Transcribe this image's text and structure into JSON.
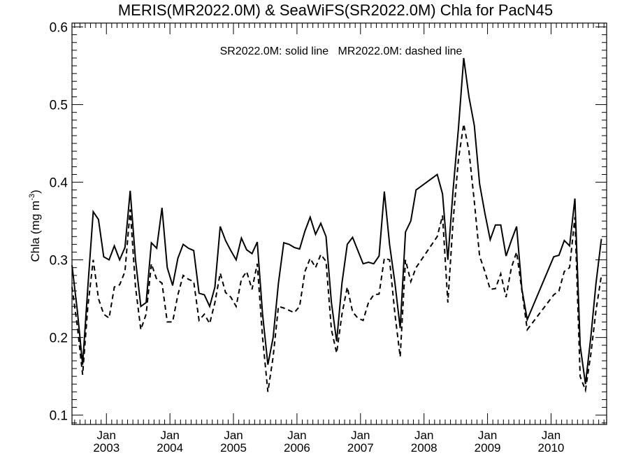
{
  "chart_data": {
    "type": "line",
    "title": "MERIS(MR2022.0M) & SeaWiFS(SR2022.0M)  Chla for PacN45",
    "annotation": "SR2022.0M: solid line   MR2022.0M: dashed line",
    "ylabel": "Chla (mg m",
    "ylabel_superscript": "-3",
    "ylabel_suffix": ")",
    "ylim": [
      0.088,
      0.605
    ],
    "xlim": [
      2002.458,
      2010.875
    ],
    "grid": false,
    "y_ticks": [
      {
        "value": 0.1,
        "label": "0.1"
      },
      {
        "value": 0.2,
        "label": "0.2"
      },
      {
        "value": 0.3,
        "label": "0.3"
      },
      {
        "value": 0.4,
        "label": "0.4"
      },
      {
        "value": 0.5,
        "label": "0.5"
      },
      {
        "value": 0.6,
        "label": "0.6"
      }
    ],
    "x_ticks": [
      {
        "value": 2003.0,
        "month": "Jan",
        "year": "2003"
      },
      {
        "value": 2004.0,
        "month": "Jan",
        "year": "2004"
      },
      {
        "value": 2005.0,
        "month": "Jan",
        "year": "2005"
      },
      {
        "value": 2006.0,
        "month": "Jan",
        "year": "2006"
      },
      {
        "value": 2007.0,
        "month": "Jan",
        "year": "2007"
      },
      {
        "value": 2008.0,
        "month": "Jan",
        "year": "2008"
      },
      {
        "value": 2009.0,
        "month": "Jan",
        "year": "2009"
      },
      {
        "value": 2010.0,
        "month": "Jan",
        "year": "2010"
      }
    ],
    "series": [
      {
        "name": "SR2022.0M",
        "style": "solid",
        "color": "#000000",
        "x": [
          2002.458,
          2002.542,
          2002.625,
          2002.708,
          2002.792,
          2002.875,
          2002.958,
          2003.042,
          2003.125,
          2003.208,
          2003.292,
          2003.375,
          2003.458,
          2003.542,
          2003.625,
          2003.708,
          2003.792,
          2003.875,
          2003.958,
          2004.042,
          2004.125,
          2004.208,
          2004.292,
          2004.375,
          2004.458,
          2004.542,
          2004.625,
          2004.708,
          2004.792,
          2004.875,
          2004.958,
          2005.042,
          2005.125,
          2005.208,
          2005.292,
          2005.375,
          2005.458,
          2005.542,
          2005.625,
          2005.708,
          2005.792,
          2005.875,
          2005.958,
          2006.042,
          2006.125,
          2006.208,
          2006.292,
          2006.375,
          2006.458,
          2006.542,
          2006.625,
          2006.708,
          2006.792,
          2006.875,
          2006.958,
          2007.042,
          2007.125,
          2007.208,
          2007.292,
          2007.375,
          2007.458,
          2007.542,
          2007.625,
          2007.708,
          2007.792,
          2007.875,
          2008.208,
          2008.292,
          2008.375,
          2008.458,
          2008.542,
          2008.625,
          2008.708,
          2008.792,
          2008.875,
          2008.958,
          2009.042,
          2009.125,
          2009.208,
          2009.292,
          2009.375,
          2009.458,
          2009.542,
          2009.625,
          2010.042,
          2010.125,
          2010.208,
          2010.292,
          2010.375,
          2010.458,
          2010.542,
          2010.625,
          2010.708,
          2010.792
        ],
        "values": [
          0.293,
          0.235,
          0.165,
          0.265,
          0.362,
          0.352,
          0.304,
          0.3,
          0.318,
          0.3,
          0.316,
          0.389,
          0.3,
          0.24,
          0.245,
          0.322,
          0.315,
          0.367,
          0.29,
          0.267,
          0.302,
          0.32,
          0.315,
          0.312,
          0.257,
          0.255,
          0.24,
          0.265,
          0.343,
          0.325,
          0.312,
          0.3,
          0.328,
          0.313,
          0.308,
          0.323,
          0.23,
          0.165,
          0.2,
          0.27,
          0.322,
          0.32,
          0.316,
          0.314,
          0.337,
          0.355,
          0.333,
          0.347,
          0.33,
          0.245,
          0.195,
          0.27,
          0.32,
          0.329,
          0.312,
          0.295,
          0.297,
          0.295,
          0.305,
          0.388,
          0.32,
          0.27,
          0.212,
          0.336,
          0.35,
          0.39,
          0.41,
          0.385,
          0.3,
          0.39,
          0.47,
          0.56,
          0.51,
          0.473,
          0.398,
          0.36,
          0.326,
          0.345,
          0.345,
          0.305,
          0.325,
          0.343,
          0.262,
          0.223,
          0.304,
          0.306,
          0.325,
          0.318,
          0.379,
          0.19,
          0.14,
          0.2,
          0.27,
          0.327
        ]
      },
      {
        "name": "MR2022.0M",
        "style": "dashed",
        "color": "#000000",
        "x": [
          2002.458,
          2002.542,
          2002.625,
          2002.708,
          2002.792,
          2002.875,
          2002.958,
          2003.042,
          2003.125,
          2003.208,
          2003.292,
          2003.375,
          2003.458,
          2003.542,
          2003.625,
          2003.708,
          2003.792,
          2003.875,
          2003.958,
          2004.042,
          2004.125,
          2004.208,
          2004.292,
          2004.375,
          2004.458,
          2004.542,
          2004.625,
          2004.708,
          2004.792,
          2004.875,
          2004.958,
          2005.042,
          2005.125,
          2005.208,
          2005.292,
          2005.375,
          2005.458,
          2005.542,
          2005.625,
          2005.708,
          2005.792,
          2005.875,
          2005.958,
          2006.042,
          2006.125,
          2006.208,
          2006.292,
          2006.375,
          2006.458,
          2006.542,
          2006.625,
          2006.708,
          2006.792,
          2006.875,
          2006.958,
          2007.042,
          2007.125,
          2007.208,
          2007.292,
          2007.375,
          2007.458,
          2007.542,
          2007.625,
          2007.708,
          2007.792,
          2007.875,
          2008.208,
          2008.292,
          2008.375,
          2008.458,
          2008.542,
          2008.625,
          2008.708,
          2008.792,
          2008.875,
          2008.958,
          2009.042,
          2009.125,
          2009.208,
          2009.292,
          2009.375,
          2009.458,
          2009.542,
          2009.625,
          2010.042,
          2010.125,
          2010.208,
          2010.292,
          2010.375,
          2010.458,
          2010.542,
          2010.625,
          2010.708,
          2010.792
        ],
        "values": [
          0.265,
          0.215,
          0.152,
          0.24,
          0.3,
          0.25,
          0.23,
          0.225,
          0.265,
          0.268,
          0.285,
          0.365,
          0.265,
          0.21,
          0.23,
          0.295,
          0.275,
          0.27,
          0.22,
          0.22,
          0.255,
          0.28,
          0.275,
          0.272,
          0.222,
          0.23,
          0.218,
          0.245,
          0.283,
          0.258,
          0.252,
          0.24,
          0.275,
          0.285,
          0.262,
          0.295,
          0.2,
          0.13,
          0.175,
          0.24,
          0.238,
          0.235,
          0.232,
          0.24,
          0.285,
          0.302,
          0.29,
          0.307,
          0.298,
          0.21,
          0.18,
          0.23,
          0.265,
          0.233,
          0.225,
          0.222,
          0.245,
          0.255,
          0.256,
          0.302,
          0.3,
          0.23,
          0.175,
          0.3,
          0.272,
          0.29,
          0.33,
          0.357,
          0.245,
          0.35,
          0.43,
          0.475,
          0.44,
          0.375,
          0.305,
          0.285,
          0.262,
          0.263,
          0.282,
          0.252,
          0.29,
          0.31,
          0.26,
          0.21,
          0.255,
          0.26,
          0.285,
          0.29,
          0.355,
          0.15,
          0.132,
          0.178,
          0.235,
          0.28
        ]
      }
    ]
  }
}
